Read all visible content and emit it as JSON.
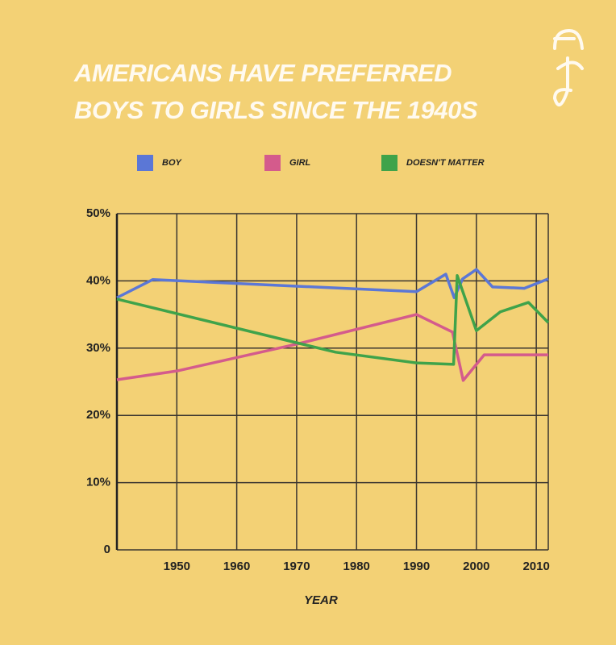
{
  "chart_data": {
    "type": "line",
    "title": "AMERICANS HAVE PREFERRED BOYS TO GIRLS SINCE THE 1940S",
    "x_label": "YEAR",
    "xlim": [
      1940,
      2012
    ],
    "xticks": [
      1950,
      1960,
      1970,
      1980,
      1990,
      2000,
      2010
    ],
    "ylim": [
      0,
      50
    ],
    "yticks": [
      0,
      {
        "value": 10,
        "label": "10%"
      },
      {
        "value": 20,
        "label": "20%"
      },
      {
        "value": 30,
        "label": "30%"
      },
      {
        "value": 40,
        "label": "40%"
      },
      {
        "value": 50,
        "label": "50%"
      }
    ],
    "grid": true,
    "legend": "top",
    "series": [
      {
        "name": "BOY",
        "color": "#5b77d6",
        "x": [
          1940,
          1946,
          1990,
          1994.9,
          1996.3,
          1997.7,
          2000,
          2002.7,
          2008,
          2012
        ],
        "values": [
          37.5,
          40.2,
          38.4,
          41,
          37.5,
          40.3,
          41.7,
          39.1,
          38.9,
          40.3
        ]
      },
      {
        "name": "GIRL",
        "color": "#d45b8c",
        "x": [
          1940,
          1950,
          1970,
          1990,
          1996,
          1997.8,
          2001.3,
          2012
        ],
        "values": [
          25.3,
          26.6,
          30.6,
          35,
          32.4,
          25.2,
          29,
          29
        ]
      },
      {
        "name": "DOESN'T MATTER",
        "color": "#3fa34a",
        "x": [
          1940,
          1970,
          1976.5,
          1990,
          1996.2,
          1996.8,
          2000,
          2004,
          2008.7,
          2012
        ],
        "values": [
          37.3,
          30.8,
          29.4,
          27.8,
          27.6,
          40.8,
          32.6,
          35.4,
          36.8,
          33.8
        ]
      }
    ]
  }
}
